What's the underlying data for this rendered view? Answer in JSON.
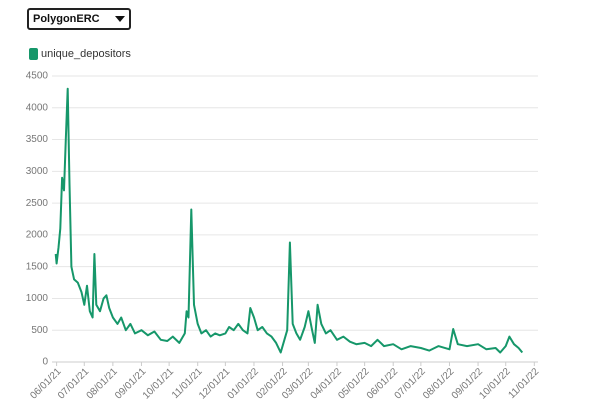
{
  "controls": {
    "dropdown": "PolygonERC"
  },
  "chart_data": {
    "type": "line",
    "x": [
      "05/31/21",
      "06/01/21",
      "06/03/21",
      "06/05/21",
      "06/07/21",
      "06/09/21",
      "06/11/21",
      "06/13/21",
      "06/15/21",
      "06/17/21",
      "06/20/21",
      "06/24/21",
      "06/28/21",
      "07/01/21",
      "07/04/21",
      "07/07/21",
      "07/10/21",
      "07/12/21",
      "07/14/21",
      "07/18/21",
      "07/22/21",
      "07/25/21",
      "07/28/21",
      "08/01/21",
      "08/06/21",
      "08/10/21",
      "08/15/21",
      "08/20/21",
      "08/25/21",
      "09/01/21",
      "09/08/21",
      "09/15/21",
      "09/22/21",
      "09/29/21",
      "10/05/21",
      "10/12/21",
      "10/18/21",
      "10/20/21",
      "10/22/21",
      "10/25/21",
      "10/28/21",
      "11/01/21",
      "11/05/21",
      "11/10/21",
      "11/15/21",
      "11/20/21",
      "11/25/21",
      "12/01/21",
      "12/05/21",
      "12/10/21",
      "12/15/21",
      "12/20/21",
      "12/25/21",
      "12/28/21",
      "01/01/22",
      "01/05/22",
      "01/10/22",
      "01/15/22",
      "01/20/22",
      "01/25/22",
      "01/30/22",
      "02/03/22",
      "02/06/22",
      "02/09/22",
      "02/12/22",
      "02/16/22",
      "02/20/22",
      "02/25/22",
      "03/01/22",
      "03/05/22",
      "03/08/22",
      "03/11/22",
      "03/15/22",
      "03/20/22",
      "03/25/22",
      "04/01/22",
      "04/08/22",
      "04/15/22",
      "04/22/22",
      "05/01/22",
      "05/08/22",
      "05/15/22",
      "05/22/22",
      "06/01/22",
      "06/10/22",
      "06/20/22",
      "07/01/22",
      "07/10/22",
      "07/20/22",
      "08/01/22",
      "08/05/22",
      "08/10/22",
      "08/20/22",
      "09/01/22",
      "09/10/22",
      "09/20/22",
      "09/25/22",
      "10/01/22",
      "10/05/22",
      "10/10/22",
      "10/15/22",
      "10/19/22"
    ],
    "series": [
      {
        "name": "unique_depositors",
        "color": "#16976a",
        "values": [
          1700,
          1550,
          1800,
          2100,
          2900,
          2700,
          3500,
          4300,
          2800,
          1500,
          1300,
          1250,
          1100,
          900,
          1200,
          800,
          700,
          1700,
          900,
          800,
          1000,
          1050,
          850,
          700,
          600,
          700,
          500,
          600,
          450,
          500,
          420,
          480,
          350,
          330,
          400,
          300,
          450,
          800,
          700,
          2400,
          900,
          600,
          450,
          500,
          400,
          450,
          420,
          450,
          550,
          500,
          600,
          500,
          450,
          850,
          700,
          500,
          550,
          450,
          400,
          300,
          150,
          350,
          500,
          1880,
          600,
          450,
          350,
          550,
          800,
          500,
          300,
          900,
          600,
          450,
          500,
          350,
          400,
          320,
          280,
          300,
          250,
          350,
          250,
          280,
          200,
          250,
          220,
          180,
          250,
          200,
          520,
          280,
          250,
          280,
          200,
          220,
          150,
          250,
          400,
          280,
          220,
          150
        ]
      }
    ],
    "xlim": [
      "05/27/21",
      "11/05/22"
    ],
    "xticks": [
      "06/01/21",
      "07/01/21",
      "08/01/21",
      "09/01/21",
      "10/01/21",
      "11/01/21",
      "12/01/21",
      "01/01/22",
      "02/01/22",
      "03/01/22",
      "04/01/22",
      "05/01/22",
      "06/01/22",
      "07/01/22",
      "08/01/22",
      "09/01/22",
      "10/01/22",
      "11/01/22"
    ],
    "ylim": [
      0,
      4500
    ],
    "yticks": [
      0,
      500,
      1000,
      1500,
      2000,
      2500,
      3000,
      3500,
      4000,
      4500
    ],
    "grid": true,
    "legend": "top-left"
  }
}
